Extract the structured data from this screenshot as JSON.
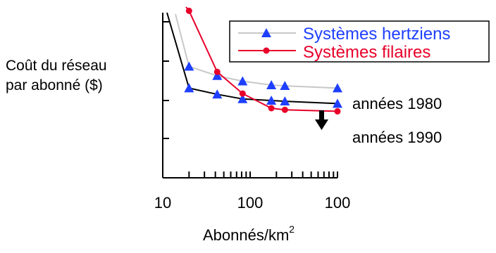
{
  "chart_data": {
    "type": "line",
    "x_tick_labels": [
      "10",
      "100",
      "100"
    ],
    "ylabel_line1": "Coût du réseau",
    "ylabel_line2": "par abonné ($)",
    "xlabel": "Abonnés/km",
    "xlabel_sup": "2",
    "x_scale": "log",
    "grid": false,
    "legend_position": "top-right",
    "legend_entries": [
      "Systèmes hertziens",
      "Systèmes filaires"
    ],
    "series": [
      {
        "name": "Systèmes hertziens",
        "color": "#1f3fff",
        "marker": "triangle",
        "curves": [
          {
            "label": "années 1980",
            "line_color": "#c8c8c8",
            "points": [
              [
                20,
                7.2
              ],
              [
                42,
                6.6
              ],
              [
                82,
                6.25
              ],
              [
                175,
                6.0
              ],
              [
                250,
                5.95
              ],
              [
                1000,
                5.8
              ]
            ]
          },
          {
            "label": "années 1990",
            "line_color": "#000000",
            "points": [
              [
                20,
                5.8
              ],
              [
                42,
                5.4
              ],
              [
                82,
                5.1
              ],
              [
                175,
                5.0
              ],
              [
                250,
                4.95
              ],
              [
                1000,
                4.8
              ]
            ]
          }
        ]
      },
      {
        "name": "Systèmes filaires",
        "color": "#e8002a",
        "marker": "circle",
        "points": [
          [
            20,
            10.8
          ],
          [
            42,
            6.85
          ],
          [
            82,
            5.45
          ],
          [
            175,
            4.5
          ],
          [
            250,
            4.4
          ],
          [
            1000,
            4.3
          ]
        ]
      }
    ],
    "annotations": [
      {
        "text": "années 1980"
      },
      {
        "text": "années 1990"
      }
    ],
    "arrow": {
      "direction": "down",
      "color": "#000000"
    }
  }
}
